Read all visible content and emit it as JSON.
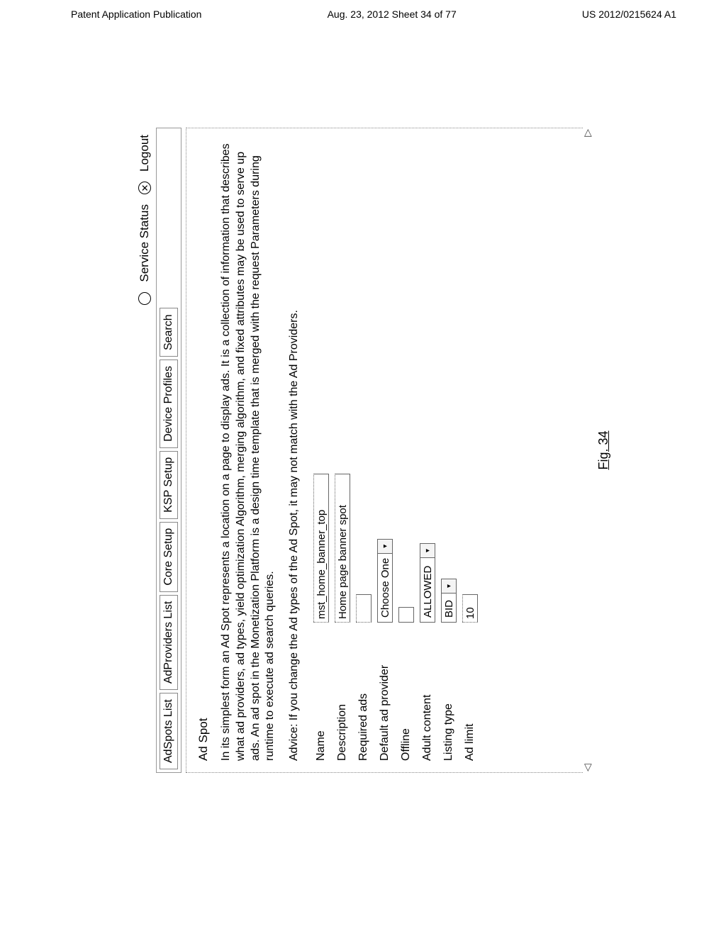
{
  "page_header": {
    "left": "Patent Application Publication",
    "center": "Aug. 23, 2012  Sheet 34 of 77",
    "right": "US 2012/0215624 A1"
  },
  "top_bar": {
    "service_status": "Service Status",
    "logout": "Logout"
  },
  "tabs": {
    "adspots": "AdSpots List",
    "adproviders": "AdProviders List",
    "core": "Core Setup",
    "ksp": "KSP Setup",
    "device": "Device Profiles",
    "search": "Search"
  },
  "panel": {
    "title": "Ad Spot",
    "intro": "In its simplest form an Ad Spot represents a location on a page to display ads. It is a collection of information that describes what ad providers, ad types, yield optimization Algorithm, merging algorithm, and fixed attributes may be used to serve up ads. An ad spot in the Monetization Platform is a design time template that is merged with the request Parameters during runtime to execute ad search queries.",
    "advice": "Advice: If you change the Ad types of the Ad Spot, it may not match with the Ad Providers."
  },
  "form": {
    "name_label": "Name",
    "name_value": "mst_home_banner_top",
    "description_label": "Description",
    "description_value": "Home page banner spot",
    "required_ads_label": "Required ads",
    "required_ads_value": "",
    "default_provider_label": "Default ad provider",
    "default_provider_value": "Choose One",
    "offline_label": "Offline",
    "adult_label": "Adult content",
    "adult_value": "ALLOWED",
    "listing_label": "Listing type",
    "listing_value": "BID",
    "adlimit_label": "Ad limit",
    "adlimit_value": "10"
  },
  "figure_label": "Fig. 34"
}
